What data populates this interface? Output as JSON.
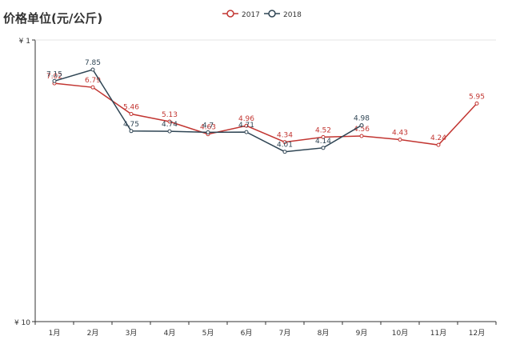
{
  "title": "价格单位(元/公斤)",
  "chart_data": {
    "type": "line",
    "title": "价格单位(元/公斤)",
    "categories": [
      "1月",
      "2月",
      "3月",
      "4月",
      "5月",
      "6月",
      "7月",
      "8月",
      "9月",
      "10月",
      "11月",
      "12月"
    ],
    "y_axis": {
      "scale": "log",
      "min": 1,
      "max": 10,
      "tick_labels": [
        "¥ 1",
        "¥ 10"
      ]
    },
    "grid": false,
    "legend_position": "top-center",
    "series": [
      {
        "name": "2017",
        "color": "#c23531",
        "values": [
          7.02,
          6.79,
          5.46,
          5.13,
          4.63,
          4.96,
          4.34,
          4.52,
          4.56,
          4.43,
          4.24,
          5.95
        ]
      },
      {
        "name": "2018",
        "color": "#2f4554",
        "values": [
          7.15,
          7.85,
          4.75,
          4.74,
          4.7,
          4.71,
          4.01,
          4.14,
          4.98,
          null,
          null,
          null
        ]
      }
    ]
  }
}
